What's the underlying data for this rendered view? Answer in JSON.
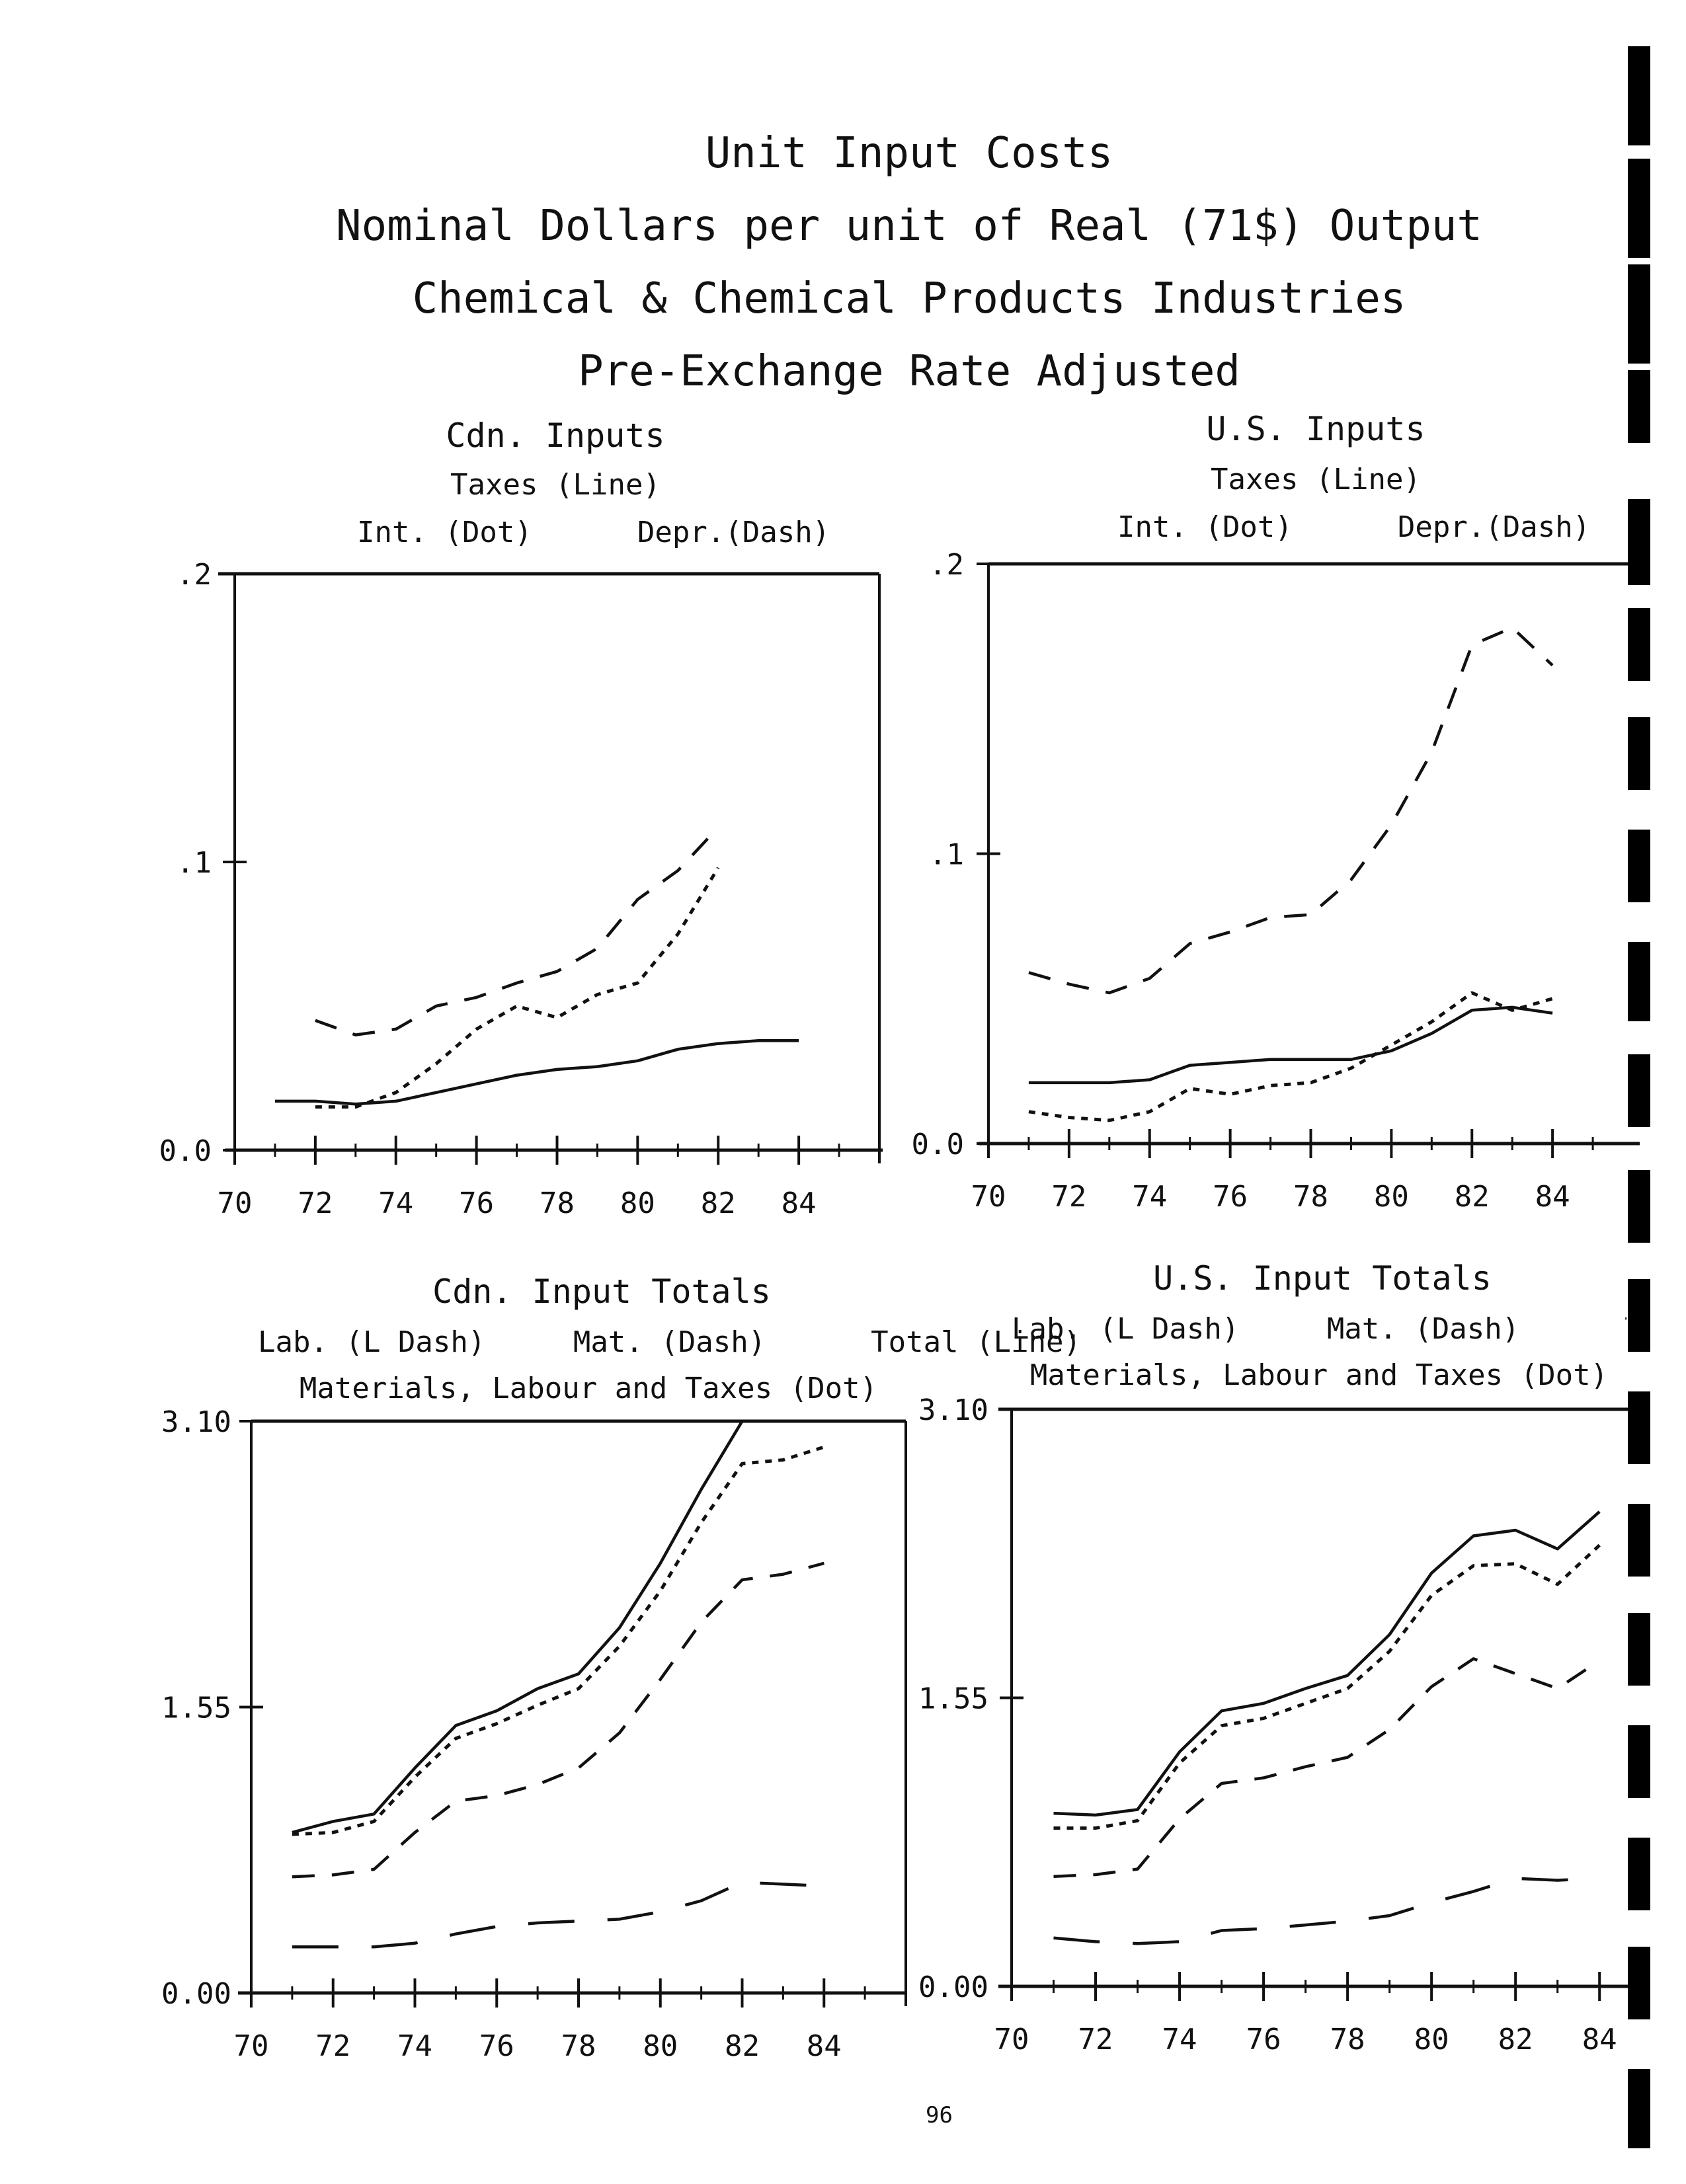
{
  "page": {
    "title_lines": [
      "Unit Input Costs",
      "Nominal Dollars per unit of Real (71$) Output",
      "Chemical & Chemical Products Industries",
      "Pre-Exchange Rate Adjusted"
    ],
    "page_number": "96"
  },
  "chart_data": [
    {
      "type": "line",
      "title": "Cdn. Inputs",
      "legend_lines": [
        "Taxes (Line)",
        "Int. (Dot)      Depr.(Dash)"
      ],
      "x_ticks": [
        "70",
        "72",
        "74",
        "76",
        "78",
        "80",
        "82",
        "84"
      ],
      "y_ticks": [
        ".2",
        ".1",
        "0.0"
      ],
      "ylim": [
        0,
        0.2
      ],
      "xlim": [
        70,
        86
      ],
      "series": [
        {
          "name": "Taxes (Line)",
          "style": "solid",
          "x": [
            71,
            72,
            73,
            74,
            75,
            76,
            77,
            78,
            79,
            80,
            81,
            82,
            83,
            84
          ],
          "y": [
            0.017,
            0.017,
            0.016,
            0.017,
            0.02,
            0.023,
            0.026,
            0.028,
            0.029,
            0.031,
            0.035,
            0.037,
            0.038,
            0.038
          ]
        },
        {
          "name": "Int. (Dot)",
          "style": "dot",
          "x": [
            72,
            73,
            74,
            75,
            76,
            77,
            78,
            79,
            80,
            81,
            82
          ],
          "y": [
            0.015,
            0.015,
            0.02,
            0.03,
            0.042,
            0.05,
            0.046,
            0.054,
            0.058,
            0.075,
            0.098
          ]
        },
        {
          "name": "Depr.(Dash)",
          "style": "dash",
          "x": [
            72,
            73,
            74,
            75,
            76,
            77,
            78,
            79,
            80,
            81,
            82
          ],
          "y": [
            0.045,
            0.04,
            0.042,
            0.05,
            0.053,
            0.058,
            0.062,
            0.07,
            0.087,
            0.097,
            0.112
          ]
        }
      ]
    },
    {
      "type": "line",
      "title": "U.S. Inputs",
      "legend_lines": [
        "Taxes (Line)",
        "Int. (Dot)      Depr.(Dash)"
      ],
      "x_ticks": [
        "70",
        "72",
        "74",
        "76",
        "78",
        "80",
        "82",
        "84"
      ],
      "y_ticks": [
        ".2",
        ".1",
        "0.0"
      ],
      "ylim": [
        0,
        0.2
      ],
      "xlim": [
        70,
        86
      ],
      "series": [
        {
          "name": "Taxes (Line)",
          "style": "solid",
          "x": [
            71,
            72,
            73,
            74,
            75,
            76,
            77,
            78,
            79,
            80,
            81,
            82,
            83,
            84
          ],
          "y": [
            0.021,
            0.021,
            0.021,
            0.022,
            0.027,
            0.028,
            0.029,
            0.029,
            0.029,
            0.032,
            0.038,
            0.046,
            0.047,
            0.045
          ]
        },
        {
          "name": "Int. (Dot)",
          "style": "dot",
          "x": [
            71,
            72,
            73,
            74,
            75,
            76,
            77,
            78,
            79,
            80,
            81,
            82,
            83,
            84
          ],
          "y": [
            0.011,
            0.009,
            0.008,
            0.011,
            0.019,
            0.017,
            0.02,
            0.021,
            0.026,
            0.034,
            0.042,
            0.052,
            0.046,
            0.05
          ]
        },
        {
          "name": "Depr.(Dash)",
          "style": "dash",
          "x": [
            71,
            72,
            73,
            74,
            75,
            76,
            77,
            78,
            79,
            80,
            81,
            82,
            83,
            84
          ],
          "y": [
            0.059,
            0.055,
            0.052,
            0.057,
            0.069,
            0.073,
            0.078,
            0.079,
            0.091,
            0.11,
            0.135,
            0.172,
            0.178,
            0.165
          ]
        }
      ]
    },
    {
      "type": "line",
      "title": "Cdn. Input Totals",
      "legend_lines": [
        "Lab. (L Dash)     Mat. (Dash)      Total (Line)",
        "Materials, Labour and Taxes (Dot)"
      ],
      "x_ticks": [
        "70",
        "72",
        "74",
        "76",
        "78",
        "80",
        "82",
        "84"
      ],
      "y_ticks": [
        "3.10",
        "1.55",
        "0.00"
      ],
      "ylim": [
        0,
        3.1
      ],
      "xlim": [
        70,
        86
      ],
      "series": [
        {
          "name": "Total (Line)",
          "style": "solid",
          "x": [
            71,
            72,
            73,
            74,
            75,
            76,
            77,
            78,
            79,
            80,
            81,
            82
          ],
          "y": [
            0.87,
            0.93,
            0.97,
            1.22,
            1.45,
            1.53,
            1.65,
            1.73,
            1.98,
            2.33,
            2.73,
            3.1
          ]
        },
        {
          "name": "Materials, Labour and Taxes (Dot)",
          "style": "dot",
          "x": [
            71,
            72,
            73,
            74,
            75,
            76,
            77,
            78,
            79,
            80,
            81,
            82,
            83,
            84
          ],
          "y": [
            0.86,
            0.87,
            0.93,
            1.17,
            1.38,
            1.46,
            1.56,
            1.65,
            1.88,
            2.18,
            2.55,
            2.87,
            2.89,
            2.96
          ]
        },
        {
          "name": "Mat. (Dash)",
          "style": "dash",
          "x": [
            71,
            72,
            73,
            74,
            75,
            76,
            77,
            78,
            79,
            80,
            81,
            82,
            83,
            84
          ],
          "y": [
            0.63,
            0.64,
            0.67,
            0.87,
            1.04,
            1.07,
            1.13,
            1.22,
            1.41,
            1.7,
            2.01,
            2.24,
            2.27,
            2.33
          ]
        },
        {
          "name": "Lab. (L Dash)",
          "style": "ldash",
          "x": [
            71,
            72,
            73,
            74,
            75,
            76,
            77,
            78,
            79,
            80,
            81,
            82,
            83,
            84
          ],
          "y": [
            0.25,
            0.25,
            0.25,
            0.27,
            0.32,
            0.36,
            0.38,
            0.39,
            0.4,
            0.44,
            0.5,
            0.6,
            0.59,
            0.58
          ]
        }
      ]
    },
    {
      "type": "line",
      "title": "U.S. Input Totals",
      "legend_lines": [
        "Lab. (L Dash)     Mat. (Dash)      Total (Line",
        "Materials, Labour and Taxes (Dot)"
      ],
      "x_ticks": [
        "70",
        "72",
        "74",
        "76",
        "78",
        "80",
        "82",
        "84"
      ],
      "y_ticks": [
        "3.10",
        "1.55",
        "0.00"
      ],
      "ylim": [
        0,
        3.1
      ],
      "xlim": [
        70,
        84.8
      ],
      "series": [
        {
          "name": "Total (Line)",
          "style": "solid",
          "x": [
            71,
            72,
            73,
            74,
            75,
            76,
            77,
            78,
            79,
            80,
            81,
            82,
            83,
            84
          ],
          "y": [
            0.93,
            0.92,
            0.95,
            1.26,
            1.48,
            1.52,
            1.6,
            1.67,
            1.89,
            2.22,
            2.42,
            2.45,
            2.35,
            2.55
          ]
        },
        {
          "name": "Materials, Labour and Taxes (Dot)",
          "style": "dot",
          "x": [
            71,
            72,
            73,
            74,
            75,
            76,
            77,
            78,
            79,
            80,
            81,
            82,
            83,
            84
          ],
          "y": [
            0.85,
            0.85,
            0.89,
            1.2,
            1.4,
            1.44,
            1.52,
            1.6,
            1.8,
            2.1,
            2.26,
            2.27,
            2.16,
            2.37
          ]
        },
        {
          "name": "Mat. (Dash)",
          "style": "dash",
          "x": [
            71,
            72,
            73,
            74,
            75,
            76,
            77,
            78,
            79,
            80,
            81,
            82,
            83,
            84
          ],
          "y": [
            0.59,
            0.6,
            0.63,
            0.9,
            1.09,
            1.12,
            1.18,
            1.23,
            1.38,
            1.61,
            1.76,
            1.68,
            1.6,
            1.75
          ]
        },
        {
          "name": "Lab. (L Dash)",
          "style": "ldash",
          "x": [
            71,
            72,
            73,
            74,
            75,
            76,
            77,
            78,
            79,
            80,
            81,
            82,
            83,
            84
          ],
          "y": [
            0.26,
            0.24,
            0.23,
            0.24,
            0.3,
            0.31,
            0.33,
            0.35,
            0.38,
            0.45,
            0.51,
            0.58,
            0.57,
            0.58
          ]
        }
      ]
    }
  ]
}
